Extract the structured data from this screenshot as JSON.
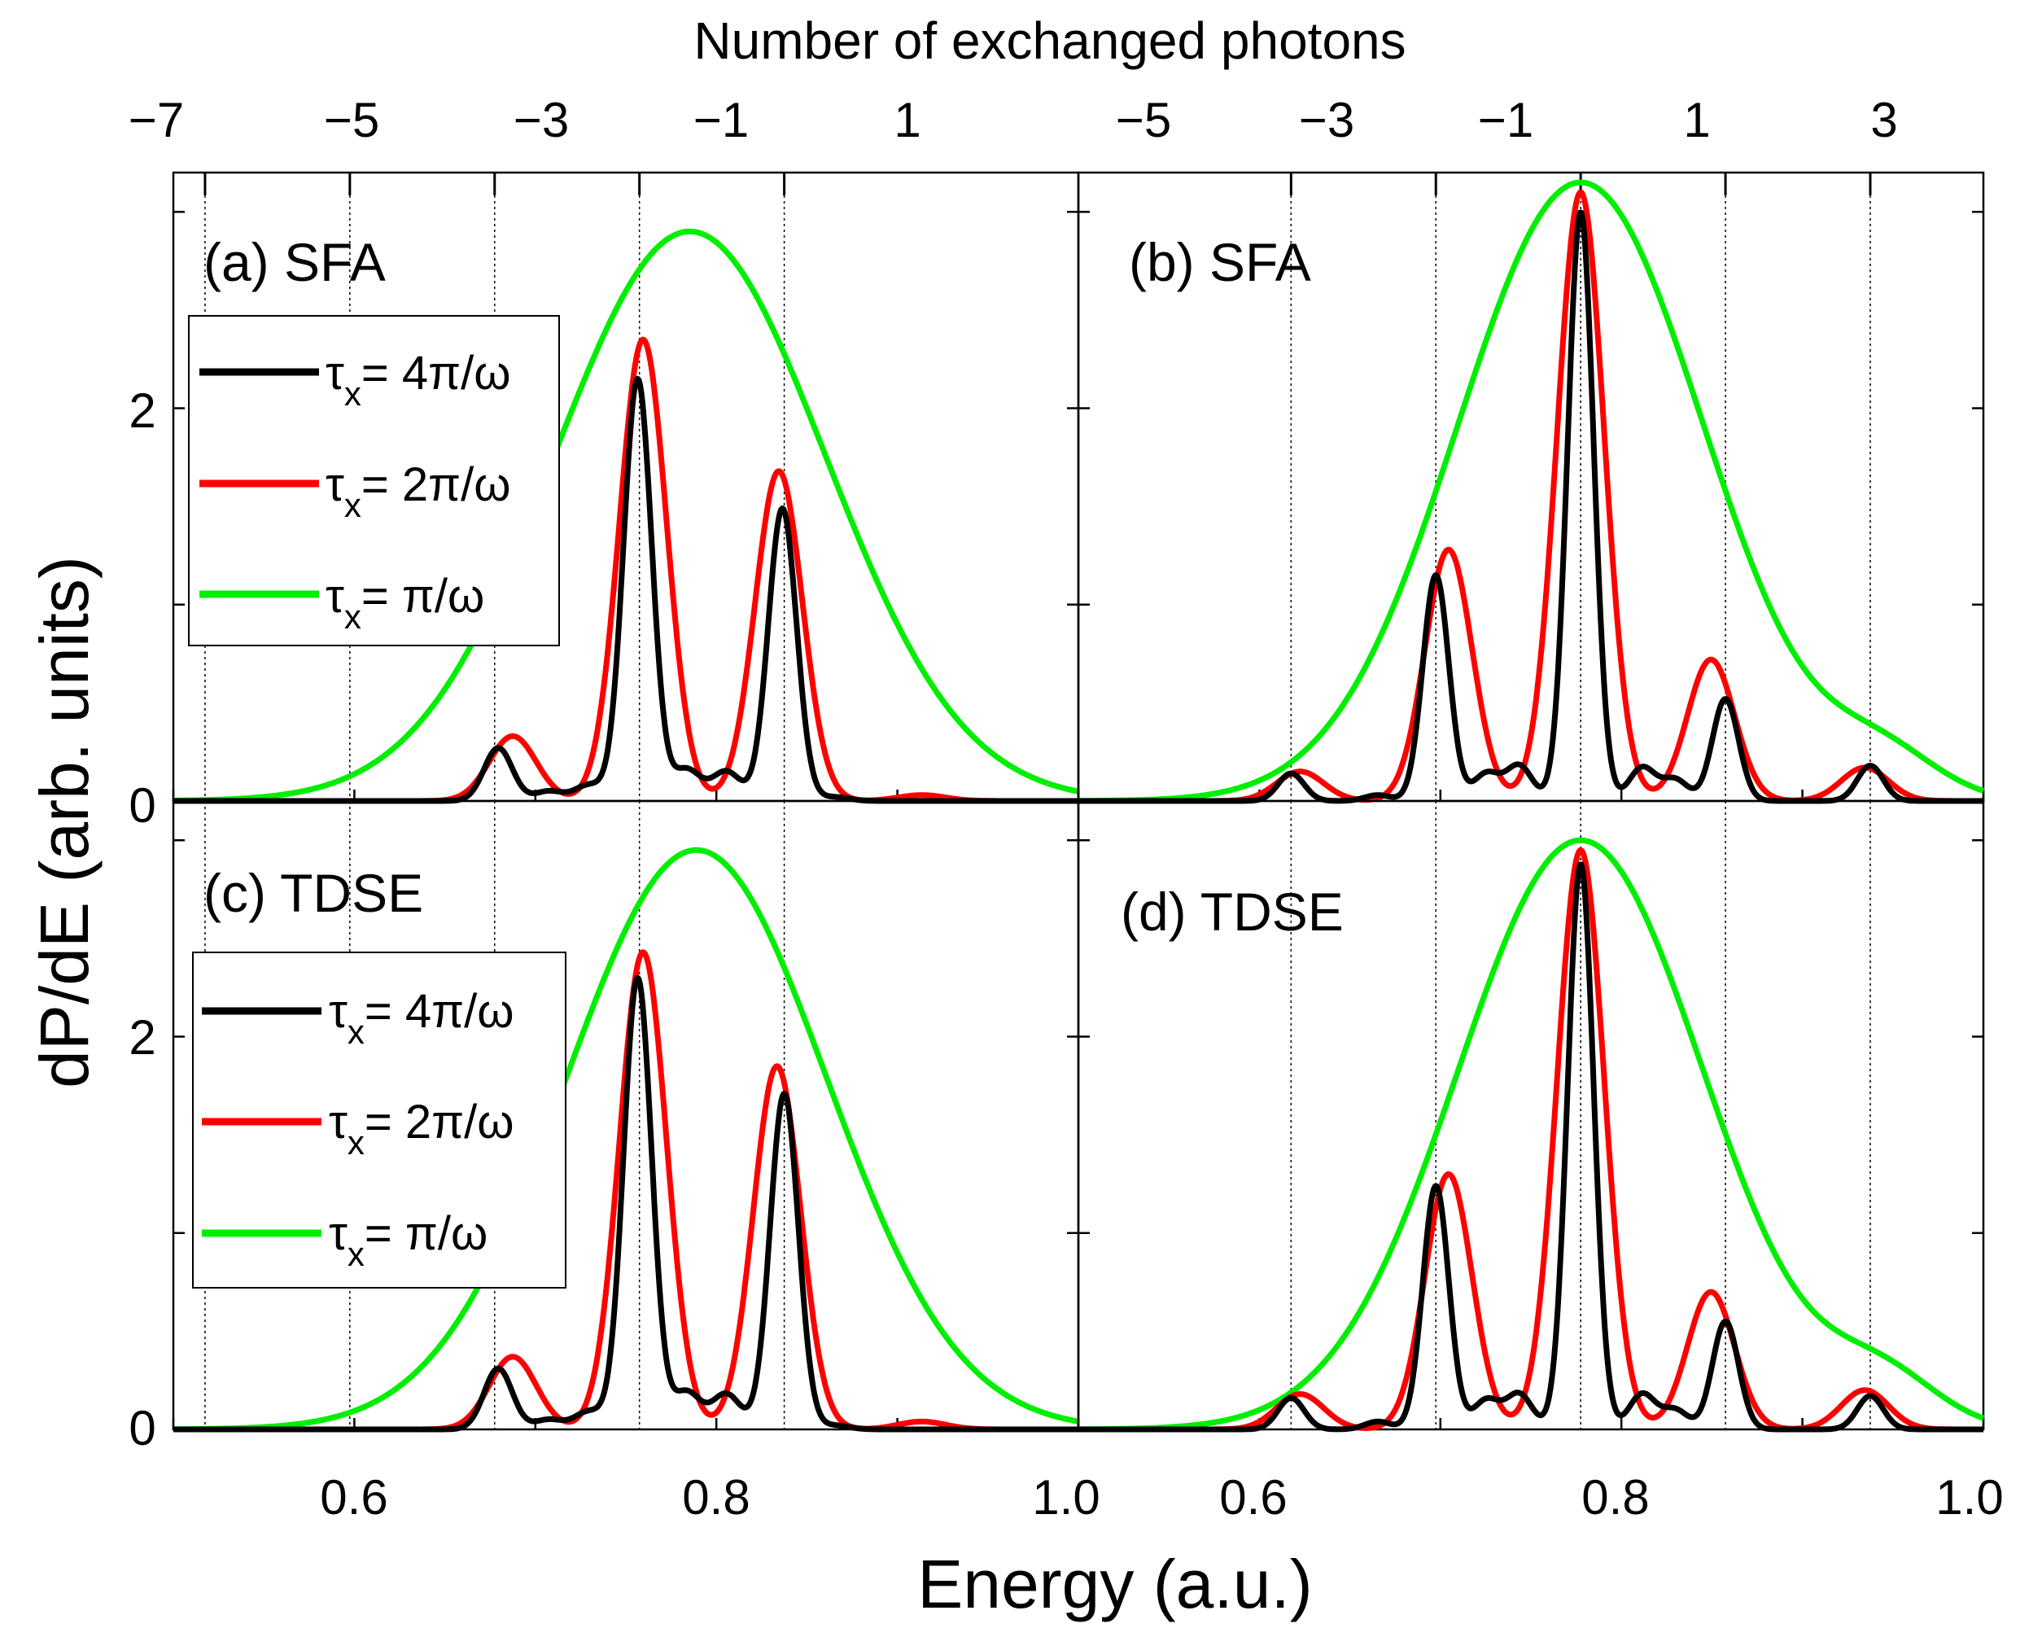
{
  "chart_data": {
    "type": "line",
    "top_axis": {
      "title": "Number of exchanged photons",
      "left_ticks": [
        "−7",
        "−5",
        "−3",
        "−1",
        "1"
      ],
      "right_ticks": [
        "−5",
        "−3",
        "−1",
        "1",
        "3"
      ]
    },
    "left_ticks_values": [
      0.5175,
      0.5975,
      0.6775,
      0.7575,
      0.8375
    ],
    "right_ticks_values": [
      0.6175,
      0.6975,
      0.7775,
      0.8575,
      0.9375
    ],
    "xlabel": "Energy (a.u.)",
    "ylabel": "dP/dE (arb. units)",
    "x_tick_labels": {
      "left": [
        "0.6",
        "0.8",
        "1.0"
      ],
      "right": [
        "0.6",
        "0.8",
        "1.0"
      ]
    },
    "y_tick_labels": [
      "0",
      "2"
    ],
    "xlim": [
      0.5,
      1.0
    ],
    "legend": {
      "prefix": "τ",
      "subscript": "x",
      "entries": [
        {
          "label": "= 4π/ω",
          "color": "#000000",
          "series": "tau_4pi"
        },
        {
          "label": "= 2π/ω",
          "color": "#ff0000",
          "series": "tau_2pi"
        },
        {
          "label": "= π/ω",
          "color": "#00ee00",
          "series": "tau_pi"
        }
      ]
    },
    "panels": [
      {
        "id": "a",
        "label": "(a) SFA",
        "ylim": [
          0,
          3.2
        ],
        "dotted_ticks": [
          0.5175,
          0.5975,
          0.6775,
          0.7575,
          0.8375
        ],
        "series": {
          "tau_pi": {
            "peak_E": 0.7853,
            "amp": 2.9,
            "sigma": 0.075
          },
          "tau_2pi": {
            "sigma": 0.013,
            "peaks": [
              [
                0.6875,
                0.33
              ],
              [
                0.7595,
                2.35
              ],
              [
                0.8345,
                1.68
              ],
              [
                0.9135,
                0.03
              ]
            ]
          },
          "tau_4pi": {
            "sigma": 0.0078,
            "peaks": [
              [
                0.6795,
                0.27
              ],
              [
                0.7075,
                0.05
              ],
              [
                0.7295,
                0.08
              ],
              [
                0.7565,
                2.15
              ],
              [
                0.7835,
                0.16
              ],
              [
                0.8055,
                0.15
              ],
              [
                0.8365,
                1.49
              ],
              [
                0.8655,
                0.02
              ]
            ]
          }
        }
      },
      {
        "id": "b",
        "label": "(b) SFA",
        "ylim": [
          0,
          3.2
        ],
        "dotted_ticks": [
          0.6175,
          0.6975,
          0.7775,
          0.8575,
          0.9375
        ],
        "series": {
          "tau_pi": {
            "peak_E": 0.7775,
            "amp": 3.15,
            "sigma": 0.068
          },
          "tau_2pi": {
            "sigma": 0.013,
            "peaks": [
              [
                0.6225,
                0.15
              ],
              [
                0.7045,
                1.28
              ],
              [
                0.7775,
                3.1
              ],
              [
                0.8495,
                0.72
              ],
              [
                0.9345,
                0.17
              ]
            ]
          },
          "tau_4pi": {
            "sigma": 0.0072,
            "peaks": [
              [
                0.6175,
                0.14
              ],
              [
                0.6655,
                0.03
              ],
              [
                0.6975,
                1.15
              ],
              [
                0.7255,
                0.14
              ],
              [
                0.7435,
                0.18
              ],
              [
                0.7775,
                3.0
              ],
              [
                0.8115,
                0.17
              ],
              [
                0.8295,
                0.11
              ],
              [
                0.8575,
                0.52
              ],
              [
                0.9375,
                0.18
              ]
            ]
          },
          "tau_pi_tail": {
            "E": 0.945,
            "amp": 0.2,
            "sigma": 0.03
          }
        }
      },
      {
        "id": "c",
        "label": "(c) TDSE",
        "ylim": [
          0,
          3.2
        ],
        "dotted_ticks": [
          0.5175,
          0.5975,
          0.6775,
          0.7575,
          0.8375
        ],
        "series": {
          "tau_pi": {
            "peak_E": 0.789,
            "amp": 2.95,
            "sigma": 0.072
          },
          "tau_2pi": {
            "sigma": 0.013,
            "peaks": [
              [
                0.6875,
                0.37
              ],
              [
                0.7595,
                2.43
              ],
              [
                0.8335,
                1.85
              ],
              [
                0.9135,
                0.04
              ]
            ]
          },
          "tau_4pi": {
            "sigma": 0.0078,
            "peaks": [
              [
                0.6795,
                0.31
              ],
              [
                0.7075,
                0.05
              ],
              [
                0.7295,
                0.09
              ],
              [
                0.7565,
                2.3
              ],
              [
                0.7835,
                0.19
              ],
              [
                0.8055,
                0.18
              ],
              [
                0.8375,
                1.71
              ],
              [
                0.8655,
                0.02
              ]
            ]
          }
        }
      },
      {
        "id": "d",
        "label": "(d) TDSE",
        "ylim": [
          0,
          3.2
        ],
        "dotted_ticks": [
          0.6175,
          0.6975,
          0.7775,
          0.8575,
          0.9375
        ],
        "series": {
          "tau_pi": {
            "peak_E": 0.7775,
            "amp": 3.0,
            "sigma": 0.068
          },
          "tau_2pi": {
            "sigma": 0.013,
            "peaks": [
              [
                0.6225,
                0.18
              ],
              [
                0.7045,
                1.3
              ],
              [
                0.7775,
                2.95
              ],
              [
                0.8495,
                0.7
              ],
              [
                0.9345,
                0.2
              ]
            ]
          },
          "tau_4pi": {
            "sigma": 0.0072,
            "peaks": [
              [
                0.6175,
                0.16
              ],
              [
                0.6655,
                0.04
              ],
              [
                0.6975,
                1.24
              ],
              [
                0.7255,
                0.15
              ],
              [
                0.7435,
                0.18
              ],
              [
                0.7775,
                2.88
              ],
              [
                0.8115,
                0.18
              ],
              [
                0.8295,
                0.1
              ],
              [
                0.8575,
                0.55
              ],
              [
                0.9375,
                0.17
              ]
            ]
          },
          "tau_pi_tail": {
            "E": 0.945,
            "amp": 0.23,
            "sigma": 0.03
          }
        }
      }
    ]
  }
}
